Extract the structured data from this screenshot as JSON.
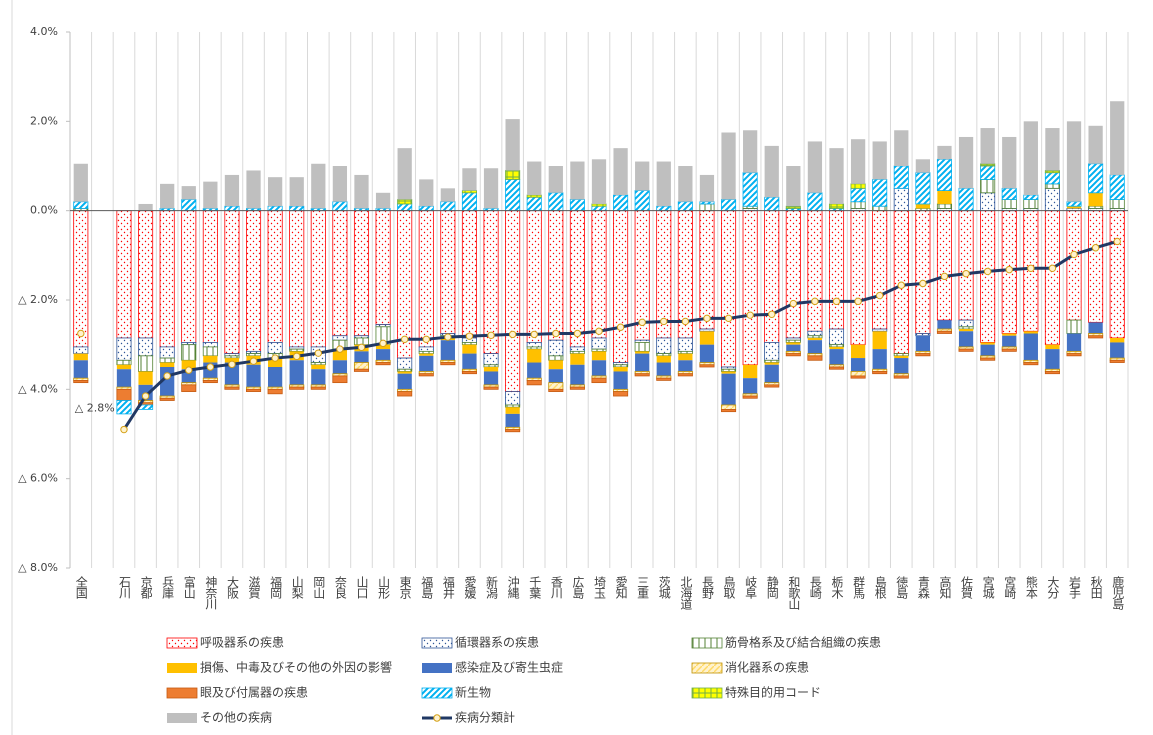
{
  "chart_data": {
    "type": "bar",
    "stacked": true,
    "categories": [
      "全国",
      null,
      "石川",
      "京都",
      "兵庫",
      "富山",
      "神奈川",
      "大阪",
      "滋賀",
      "福岡",
      "山梨",
      "岡山",
      "奈良",
      "山口",
      "山形",
      "東京",
      "福島",
      "福井",
      "愛媛",
      "新潟",
      "沖縄",
      "千葉",
      "香川",
      "広島",
      "埼玉",
      "愛知",
      "三重",
      "茨城",
      "北海道",
      "長野",
      "鳥取",
      "岐阜",
      "静岡",
      "和歌山",
      "長崎",
      "栃木",
      "群馬",
      "島根",
      "徳島",
      "青森",
      "高知",
      "佐賀",
      "宮城",
      "宮崎",
      "熊本",
      "大分",
      "岩手",
      "秋田",
      "鹿児島"
    ],
    "ylim": [
      -8,
      4
    ],
    "yticks": [
      {
        "value": 4,
        "label": "4.0%"
      },
      {
        "value": 2,
        "label": "2.0%"
      },
      {
        "value": 0,
        "label": "0.0%"
      },
      {
        "value": -2,
        "label": "△ 2.0%"
      },
      {
        "value": -4,
        "label": "△ 4.0%"
      },
      {
        "value": -6,
        "label": "△ 6.0%"
      },
      {
        "value": -8,
        "label": "△ 8.0%"
      }
    ],
    "annotation": {
      "text": "△ 2.8%",
      "category": 0
    },
    "grid": true,
    "legend": "bottom",
    "series": [
      {
        "name": "呼吸器系の疾患",
        "color": "#ff0000",
        "values": [
          -3.05,
          null,
          -2.85,
          -2.85,
          -3.05,
          -2.95,
          -2.95,
          -3.2,
          -3.15,
          -2.95,
          -3.05,
          -3.05,
          -2.8,
          -2.8,
          -2.55,
          -3.3,
          -3.05,
          -2.75,
          -2.85,
          -3.2,
          -4.05,
          -2.95,
          -2.9,
          -3.05,
          -2.85,
          -3.4,
          -2.9,
          -2.85,
          -2.85,
          -2.65,
          -3.5,
          -3.45,
          -2.95,
          -2.85,
          -2.7,
          -2.65,
          -3.0,
          -2.65,
          -3.2,
          -2.75,
          -2.45,
          -2.45,
          -2.95,
          -2.75,
          -2.7,
          -3.0,
          -2.45,
          -2.5,
          -2.85
        ]
      },
      {
        "name": "循環器系の疾患",
        "color": "#2f5597",
        "values": [
          -0.15,
          null,
          -0.5,
          -0.4,
          -0.25,
          -0.05,
          -0.1,
          -0.05,
          -0.05,
          -0.25,
          -0.05,
          -0.35,
          -0.1,
          -0.05,
          -0.05,
          -0.25,
          -0.1,
          -0.05,
          -0.1,
          -0.25,
          -0.3,
          -0.1,
          -0.35,
          -0.1,
          -0.25,
          -0.05,
          -0.05,
          -0.35,
          -0.3,
          -0.05,
          -0.05,
          0.05,
          -0.4,
          -0.05,
          -0.1,
          -0.35,
          0.05,
          -0.05,
          0.5,
          -0.05,
          0.05,
          -0.15,
          0.4,
          0.05,
          0.05,
          0.5,
          0.05,
          0.05,
          0.05
        ]
      },
      {
        "name": "筋骨格系及び結合組織の疾患",
        "color": "#548235",
        "values": [
          0.05,
          null,
          -0.1,
          -0.35,
          -0.1,
          -0.35,
          -0.2,
          -0.05,
          -0.05,
          -0.1,
          -0.05,
          -0.05,
          -0.2,
          -0.15,
          -0.4,
          -0.05,
          -0.05,
          -0.05,
          -0.05,
          -0.05,
          -0.05,
          -0.05,
          -0.1,
          -0.05,
          -0.05,
          -0.05,
          -0.2,
          -0.05,
          -0.05,
          0.15,
          -0.05,
          0.05,
          -0.05,
          -0.05,
          -0.05,
          -0.05,
          0.15,
          0.1,
          -0.05,
          0.05,
          0.1,
          -0.05,
          0.3,
          0.2,
          0.2,
          0.1,
          -0.3,
          0.05,
          0.2
        ]
      },
      {
        "name": "損傷、中毒及びその他の外因の影響",
        "color": "#ffc000",
        "values": [
          -0.15,
          null,
          -0.1,
          -0.3,
          -0.1,
          -0.2,
          -0.15,
          -0.1,
          -0.2,
          -0.2,
          -0.2,
          -0.1,
          -0.25,
          -0.15,
          -0.1,
          -0.05,
          -0.05,
          -0.05,
          -0.2,
          -0.1,
          -0.15,
          -0.3,
          -0.2,
          -0.25,
          -0.2,
          -0.1,
          -0.05,
          -0.15,
          -0.15,
          -0.3,
          -0.05,
          -0.3,
          -0.05,
          -0.05,
          -0.05,
          -0.05,
          -0.3,
          -0.4,
          -0.05,
          0.1,
          0.3,
          -0.05,
          -0.05,
          -0.05,
          -0.05,
          -0.1,
          0.05,
          0.3,
          -0.1
        ]
      },
      {
        "name": "感染症及び寄生虫症",
        "color": "#4472c4",
        "values": [
          -0.4,
          null,
          -0.4,
          -0.35,
          -0.65,
          -0.3,
          -0.35,
          -0.5,
          -0.5,
          -0.45,
          -0.55,
          -0.35,
          -0.3,
          -0.25,
          -0.25,
          -0.35,
          -0.35,
          -0.45,
          -0.35,
          -0.3,
          -0.3,
          -0.35,
          -0.3,
          -0.45,
          -0.35,
          -0.4,
          -0.4,
          -0.3,
          -0.25,
          -0.4,
          -0.7,
          -0.35,
          -0.4,
          -0.15,
          -0.3,
          -0.35,
          -0.3,
          -0.45,
          -0.35,
          -0.35,
          -0.2,
          -0.35,
          -0.25,
          -0.25,
          -0.6,
          -0.45,
          -0.4,
          -0.25,
          -0.35
        ]
      },
      {
        "name": "消化器系の疾患",
        "color": "#bf9000",
        "values": [
          -0.05,
          null,
          -0.05,
          -0.05,
          -0.05,
          -0.05,
          -0.05,
          -0.05,
          -0.05,
          -0.05,
          -0.05,
          -0.05,
          -0.05,
          -0.15,
          -0.05,
          -0.05,
          -0.05,
          -0.05,
          -0.05,
          -0.05,
          -0.05,
          -0.05,
          -0.15,
          -0.05,
          -0.05,
          -0.05,
          -0.05,
          -0.05,
          -0.05,
          -0.05,
          -0.1,
          -0.05,
          -0.05,
          -0.05,
          -0.05,
          -0.05,
          -0.1,
          -0.05,
          -0.05,
          -0.05,
          -0.05,
          -0.05,
          -0.05,
          -0.05,
          -0.05,
          -0.05,
          -0.05,
          -0.05,
          -0.05
        ]
      },
      {
        "name": "眼及び付属器の疾患",
        "color": "#ed7d31",
        "values": [
          -0.05,
          null,
          -0.25,
          -0.05,
          -0.05,
          -0.15,
          -0.05,
          -0.05,
          -0.05,
          -0.1,
          -0.05,
          -0.05,
          -0.15,
          -0.05,
          -0.05,
          -0.1,
          -0.05,
          -0.05,
          -0.05,
          -0.05,
          -0.05,
          -0.1,
          -0.05,
          -0.05,
          -0.1,
          -0.1,
          -0.05,
          -0.05,
          -0.05,
          -0.05,
          -0.05,
          -0.05,
          -0.05,
          -0.05,
          -0.1,
          -0.05,
          -0.05,
          -0.05,
          -0.05,
          -0.05,
          -0.05,
          -0.05,
          -0.05,
          -0.05,
          -0.05,
          -0.05,
          -0.05,
          -0.05,
          -0.05
        ]
      },
      {
        "name": "新生物",
        "color": "#00b0f0",
        "values": [
          0.15,
          null,
          -0.3,
          -0.1,
          0.05,
          0.25,
          0.05,
          0.1,
          0.05,
          0.1,
          0.1,
          0.05,
          0.2,
          0.05,
          0.05,
          0.15,
          0.1,
          0.2,
          0.4,
          0.05,
          0.7,
          0.3,
          0.4,
          0.25,
          0.1,
          0.35,
          0.45,
          0.1,
          0.2,
          0.05,
          0.25,
          0.75,
          0.3,
          0.05,
          0.4,
          0.05,
          0.3,
          0.6,
          0.5,
          0.7,
          0.7,
          0.5,
          0.3,
          0.25,
          0.1,
          0.25,
          0.1,
          0.65,
          0.55
        ]
      },
      {
        "name": "特殊目的用コード",
        "color": "#70ad47",
        "values": [
          0,
          null,
          0,
          0,
          0,
          0,
          0,
          0,
          0,
          0,
          0,
          0,
          0,
          0,
          0,
          0.1,
          0,
          0,
          0.05,
          0,
          0.2,
          0.05,
          0,
          0,
          0.05,
          0,
          0,
          0,
          0,
          0,
          0,
          0,
          0,
          0.05,
          0,
          0.1,
          0.1,
          0,
          0,
          0,
          0,
          0,
          0.05,
          0,
          0,
          0.05,
          0,
          0,
          0
        ]
      },
      {
        "name": "その他の疾病",
        "color": "#bfbfbf",
        "values": [
          0.85,
          null,
          0,
          0.15,
          0.55,
          0.3,
          0.6,
          0.7,
          0.85,
          0.65,
          0.65,
          1.0,
          0.8,
          0.75,
          0.35,
          1.15,
          0.6,
          0.3,
          0.5,
          0.9,
          1.15,
          0.75,
          0.6,
          0.85,
          1.0,
          1.05,
          0.65,
          1.0,
          0.8,
          0.6,
          1.5,
          0.95,
          1.15,
          0.9,
          1.15,
          1.25,
          1.0,
          0.85,
          0.8,
          0.3,
          0.3,
          1.15,
          0.8,
          1.15,
          1.65,
          0.95,
          1.8,
          0.85,
          1.65
        ]
      },
      {
        "name": "疾病分類計",
        "type": "line",
        "color": "#203864",
        "values": [
          -2.75,
          null,
          -4.9,
          -4.15,
          -3.7,
          -3.57,
          -3.5,
          -3.44,
          -3.37,
          -3.3,
          -3.26,
          -3.19,
          -3.1,
          -3.06,
          -2.97,
          -2.88,
          -2.88,
          -2.83,
          -2.81,
          -2.79,
          -2.77,
          -2.77,
          -2.75,
          -2.75,
          -2.7,
          -2.61,
          -2.5,
          -2.48,
          -2.48,
          -2.41,
          -2.41,
          -2.34,
          -2.32,
          -2.08,
          -2.03,
          -2.03,
          -2.03,
          -1.9,
          -1.67,
          -1.63,
          -1.47,
          -1.41,
          -1.36,
          -1.32,
          -1.29,
          -1.29,
          -0.98,
          -0.83,
          -0.69
        ]
      }
    ]
  }
}
